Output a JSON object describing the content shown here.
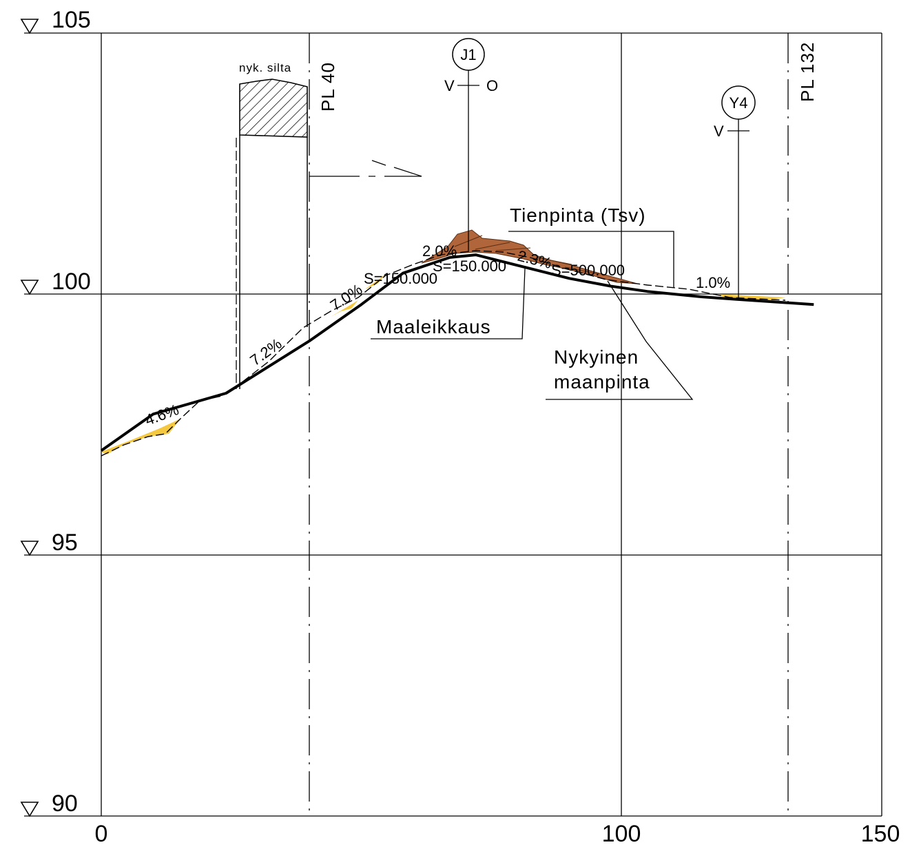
{
  "chart_data": {
    "type": "line",
    "title": "",
    "xlabel": "",
    "ylabel": "",
    "xlim": [
      0,
      150
    ],
    "ylim": [
      90,
      105
    ],
    "x_ticks": [
      "0",
      "100",
      "150"
    ],
    "elevation_marks": [
      "105",
      "100",
      "95",
      "90"
    ],
    "series": [
      {
        "name": "Tienpinta (Tsv)",
        "x": [
          0,
          10,
          24,
          40,
          50,
          58,
          67,
          72,
          80,
          90,
          98,
          105,
          115,
          122,
          137
        ],
        "y": [
          97.0,
          97.7,
          98.1,
          99.1,
          99.8,
          100.4,
          100.7,
          100.75,
          100.55,
          100.3,
          100.15,
          100.05,
          99.95,
          99.9,
          99.8
        ]
      },
      {
        "name": "Nykyinen maanpinta",
        "x": [
          0,
          5,
          12,
          18,
          25,
          40,
          48,
          55,
          62,
          68,
          72,
          80,
          90,
          100,
          110,
          120,
          130,
          137
        ],
        "y": [
          96.85,
          97.1,
          97.3,
          97.8,
          98.15,
          99.1,
          99.6,
          100.2,
          100.5,
          100.65,
          100.6,
          100.45,
          100.25,
          100.1,
          100.0,
          99.9,
          99.85,
          99.8
        ]
      }
    ],
    "annotations": {
      "grades": [
        "4.6%",
        "7.2%",
        "7.0%",
        "2.0%",
        "2.3%",
        "1.0%"
      ],
      "curves": [
        "S=150.000",
        "S=150.000",
        "S=500.000"
      ],
      "labels": [
        "Tienpinta (Tsv)",
        "Maaleikkaus",
        "Nykyinen",
        "maanpinta",
        "nyk. silta"
      ],
      "stations": [
        "PL 40",
        "PL 132"
      ],
      "markers": [
        "J1",
        "Y4"
      ],
      "marker_sides": [
        "V",
        "O",
        "V"
      ]
    },
    "grid": true
  },
  "colors": {
    "line": "#000000",
    "fill_yellow": "#f5c842",
    "fill_brown": "#b0653a"
  }
}
